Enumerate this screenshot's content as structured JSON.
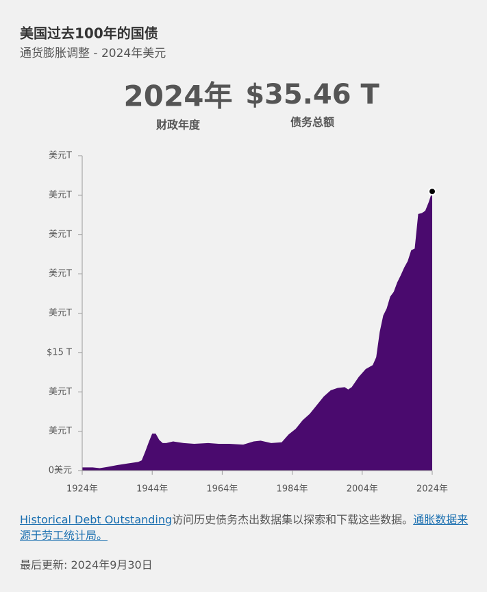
{
  "title": "美国过去100年的国债",
  "subtitle": "通货膨胀调整 - 2024年美元",
  "kpis": [
    {
      "value": "2024年",
      "label": "财政年度"
    },
    {
      "value": "$35.46 T",
      "label": "债务总额"
    }
  ],
  "chart_data": {
    "type": "area",
    "color": "#4a0a6e",
    "x": [
      1924,
      1927,
      1929,
      1931,
      1934,
      1937,
      1940,
      1941,
      1942,
      1943,
      1944,
      1945,
      1946,
      1947,
      1948,
      1950,
      1953,
      1956,
      1960,
      1963,
      1966,
      1970,
      1973,
      1975,
      1978,
      1981,
      1983,
      1985,
      1987,
      1989,
      1991,
      1993,
      1995,
      1997,
      1999,
      2000,
      2001,
      2003,
      2005,
      2007,
      2008,
      2009,
      2010,
      2011,
      2012,
      2013,
      2014,
      2015,
      2016,
      2017,
      2018,
      2019,
      2020,
      2021,
      2022,
      2023,
      2024
    ],
    "values": [
      0.4,
      0.4,
      0.3,
      0.45,
      0.7,
      0.9,
      1.1,
      1.3,
      2.4,
      3.6,
      4.7,
      4.7,
      3.9,
      3.5,
      3.5,
      3.7,
      3.5,
      3.4,
      3.5,
      3.4,
      3.4,
      3.3,
      3.7,
      3.8,
      3.5,
      3.6,
      4.6,
      5.3,
      6.4,
      7.2,
      8.3,
      9.4,
      10.2,
      10.5,
      10.6,
      10.3,
      10.6,
      11.9,
      12.9,
      13.4,
      14.4,
      17.6,
      19.7,
      20.6,
      22.1,
      22.7,
      23.9,
      24.8,
      25.8,
      26.6,
      28.0,
      28.2,
      32.6,
      32.7,
      33.0,
      34.1,
      35.46
    ],
    "xlim": [
      1924,
      2024
    ],
    "xticks": [
      {
        "value": 1924,
        "label": "1924年"
      },
      {
        "value": 1944,
        "label": "1944年"
      },
      {
        "value": 1964,
        "label": "1964年"
      },
      {
        "value": 1984,
        "label": "1984年"
      },
      {
        "value": 2004,
        "label": "2004年"
      },
      {
        "value": 2024,
        "label": "2024年"
      }
    ],
    "ylim": [
      0,
      40
    ],
    "yticks": [
      {
        "value": 0,
        "label": "0美元"
      },
      {
        "value": 5,
        "label": "美元T"
      },
      {
        "value": 10,
        "label": "美元T"
      },
      {
        "value": 15,
        "label": "$15 T"
      },
      {
        "value": 20,
        "label": "美元T"
      },
      {
        "value": 25,
        "label": "美元T"
      },
      {
        "value": 30,
        "label": "美元T"
      },
      {
        "value": 35,
        "label": "美元T"
      },
      {
        "value": 40,
        "label": "美元T"
      }
    ]
  },
  "footer": {
    "link1": "Historical Debt Outstanding",
    "text": "访问历史债务杰出数据集以探索和下载这些数据。",
    "link2": "通胀数据来源于劳工统计局。",
    "updated": "最后更新: 2024年9月30日"
  }
}
